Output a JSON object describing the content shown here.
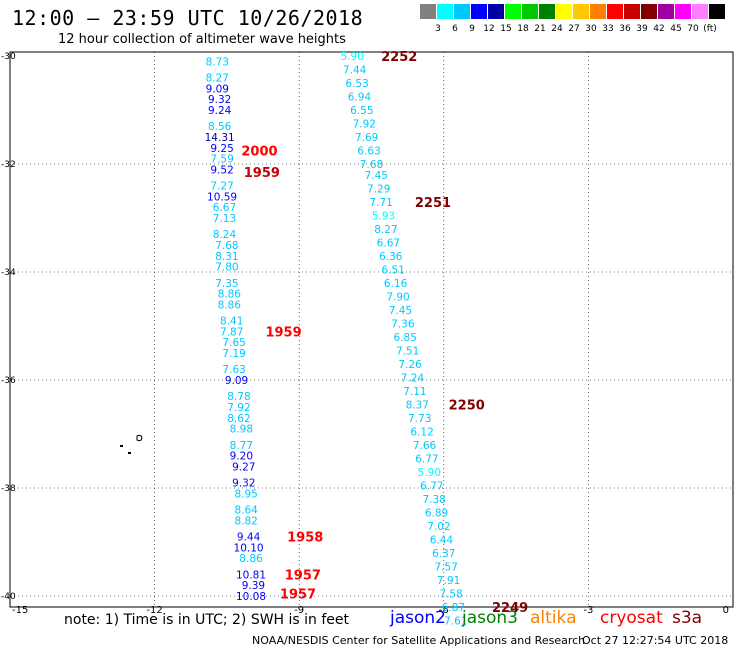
{
  "header": {
    "title": "12:00 — 23:59 UTC 10/26/2018",
    "subtitle": "12 hour collection of altimeter wave heights"
  },
  "scale": {
    "colors": [
      "#808080",
      "#00ffff",
      "#00c8ff",
      "#0000ff",
      "#0000a0",
      "#00ff00",
      "#00c800",
      "#008000",
      "#ffff00",
      "#ffc800",
      "#ff8000",
      "#ff0000",
      "#c80000",
      "#800000",
      "#a000a0",
      "#ff00ff",
      "#ff80ff",
      "#000000"
    ],
    "labels": [
      "3",
      "6",
      "9",
      "12",
      "15",
      "18",
      "21",
      "24",
      "27",
      "30",
      "33",
      "36",
      "39",
      "42",
      "45",
      "70",
      "(ft)"
    ]
  },
  "axes": {
    "x_ticks": [
      "-15",
      "-12",
      "-9",
      "-6",
      "-3",
      "0"
    ],
    "y_ticks": [
      "-30",
      "-32",
      "-34",
      "-36",
      "-38",
      "-40"
    ]
  },
  "tracks": [
    {
      "points": [
        {
          "lat": -30.1,
          "lon": -10.7,
          "v": "8.73"
        },
        {
          "lat": -30.4,
          "lon": -10.7,
          "v": "8.27"
        },
        {
          "lat": -30.6,
          "lon": -10.7,
          "v": "9.09"
        },
        {
          "lat": -30.8,
          "lon": -10.65,
          "v": "9.32"
        },
        {
          "lat": -31.0,
          "lon": -10.65,
          "v": "9.24"
        },
        {
          "lat": -31.3,
          "lon": -10.65,
          "v": "8.56"
        },
        {
          "lat": -31.5,
          "lon": -10.65,
          "v": "14.31"
        },
        {
          "lat": -31.7,
          "lon": -10.6,
          "v": "9.25"
        },
        {
          "lat": -31.9,
          "lon": -10.6,
          "v": "7.59"
        },
        {
          "lat": -32.1,
          "lon": -10.6,
          "v": "9.52"
        },
        {
          "lat": -32.4,
          "lon": -10.6,
          "v": "7.27"
        },
        {
          "lat": -32.6,
          "lon": -10.6,
          "v": "10.59"
        },
        {
          "lat": -32.8,
          "lon": -10.55,
          "v": "6.67"
        },
        {
          "lat": -33.0,
          "lon": -10.55,
          "v": "7.13"
        },
        {
          "lat": -33.3,
          "lon": -10.55,
          "v": "8.24"
        },
        {
          "lat": -33.5,
          "lon": -10.5,
          "v": "7.68"
        },
        {
          "lat": -33.7,
          "lon": -10.5,
          "v": "8.31"
        },
        {
          "lat": -33.9,
          "lon": -10.5,
          "v": "7.80"
        },
        {
          "lat": -34.2,
          "lon": -10.5,
          "v": "7.35"
        },
        {
          "lat": -34.4,
          "lon": -10.45,
          "v": "8.86"
        },
        {
          "lat": -34.6,
          "lon": -10.45,
          "v": "8.86"
        },
        {
          "lat": -34.9,
          "lon": -10.4,
          "v": "8.41"
        },
        {
          "lat": -35.1,
          "lon": -10.4,
          "v": "7.87"
        },
        {
          "lat": -35.3,
          "lon": -10.35,
          "v": "7.65"
        },
        {
          "lat": -35.5,
          "lon": -10.35,
          "v": "7.19"
        },
        {
          "lat": -35.8,
          "lon": -10.35,
          "v": "7.63"
        },
        {
          "lat": -36.0,
          "lon": -10.3,
          "v": "9.09"
        },
        {
          "lat": -36.3,
          "lon": -10.25,
          "v": "8.78"
        },
        {
          "lat": -36.5,
          "lon": -10.25,
          "v": "7.92"
        },
        {
          "lat": -36.7,
          "lon": -10.25,
          "v": "8.62"
        },
        {
          "lat": -36.9,
          "lon": -10.2,
          "v": "8.98"
        },
        {
          "lat": -37.2,
          "lon": -10.2,
          "v": "8.77"
        },
        {
          "lat": -37.4,
          "lon": -10.2,
          "v": "9.20"
        },
        {
          "lat": -37.6,
          "lon": -10.15,
          "v": "9.27"
        },
        {
          "lat": -37.9,
          "lon": -10.15,
          "v": "9.32"
        },
        {
          "lat": -38.1,
          "lon": -10.1,
          "v": "8.95"
        },
        {
          "lat": -38.4,
          "lon": -10.1,
          "v": "8.64"
        },
        {
          "lat": -38.6,
          "lon": -10.1,
          "v": "8.82"
        },
        {
          "lat": -38.9,
          "lon": -10.05,
          "v": "9.44"
        },
        {
          "lat": -39.1,
          "lon": -10.05,
          "v": "10.10"
        },
        {
          "lat": -39.3,
          "lon": -10.0,
          "v": "8.86"
        },
        {
          "lat": -39.6,
          "lon": -10.0,
          "v": "10.81"
        },
        {
          "lat": -39.8,
          "lon": -9.95,
          "v": "9.39"
        },
        {
          "lat": -40.0,
          "lon": -10.0,
          "v": "10.08"
        }
      ]
    },
    {
      "points": [
        {
          "lat": -30.0,
          "lon": -7.9,
          "v": "5.90"
        },
        {
          "lat": -30.25,
          "lon": -7.85,
          "v": "7.44"
        },
        {
          "lat": -30.5,
          "lon": -7.8,
          "v": "6.53"
        },
        {
          "lat": -30.75,
          "lon": -7.75,
          "v": "6.94"
        },
        {
          "lat": -31.0,
          "lon": -7.7,
          "v": "6.55"
        },
        {
          "lat": -31.25,
          "lon": -7.65,
          "v": "7.92"
        },
        {
          "lat": -31.5,
          "lon": -7.6,
          "v": "7.69"
        },
        {
          "lat": -31.75,
          "lon": -7.55,
          "v": "6.63"
        },
        {
          "lat": -32.0,
          "lon": -7.5,
          "v": "7.68"
        },
        {
          "lat": -32.2,
          "lon": -7.4,
          "v": "7.45"
        },
        {
          "lat": -32.45,
          "lon": -7.35,
          "v": "7.29"
        },
        {
          "lat": -32.7,
          "lon": -7.3,
          "v": "7.71"
        },
        {
          "lat": -32.95,
          "lon": -7.25,
          "v": "5.93"
        },
        {
          "lat": -33.2,
          "lon": -7.2,
          "v": "8.27"
        },
        {
          "lat": -33.45,
          "lon": -7.15,
          "v": "6.67"
        },
        {
          "lat": -33.7,
          "lon": -7.1,
          "v": "6.36"
        },
        {
          "lat": -33.95,
          "lon": -7.05,
          "v": "6.51"
        },
        {
          "lat": -34.2,
          "lon": -7.0,
          "v": "6.16"
        },
        {
          "lat": -34.45,
          "lon": -6.95,
          "v": "7.90"
        },
        {
          "lat": -34.7,
          "lon": -6.9,
          "v": "7.45"
        },
        {
          "lat": -34.95,
          "lon": -6.85,
          "v": "7.36"
        },
        {
          "lat": -35.2,
          "lon": -6.8,
          "v": "6.85"
        },
        {
          "lat": -35.45,
          "lon": -6.75,
          "v": "7.51"
        },
        {
          "lat": -35.7,
          "lon": -6.7,
          "v": "7.26"
        },
        {
          "lat": -35.95,
          "lon": -6.65,
          "v": "7.24"
        },
        {
          "lat": -36.2,
          "lon": -6.6,
          "v": "7.11"
        },
        {
          "lat": -36.45,
          "lon": -6.55,
          "v": "8.37"
        },
        {
          "lat": -36.7,
          "lon": -6.5,
          "v": "7.73"
        },
        {
          "lat": -36.95,
          "lon": -6.45,
          "v": "6.12"
        },
        {
          "lat": -37.2,
          "lon": -6.4,
          "v": "7.66"
        },
        {
          "lat": -37.45,
          "lon": -6.35,
          "v": "6.77"
        },
        {
          "lat": -37.7,
          "lon": -6.3,
          "v": "5.90"
        },
        {
          "lat": -37.95,
          "lon": -6.25,
          "v": "6.77"
        },
        {
          "lat": -38.2,
          "lon": -6.2,
          "v": "7.38"
        },
        {
          "lat": -38.45,
          "lon": -6.15,
          "v": "6.89"
        },
        {
          "lat": -38.7,
          "lon": -6.1,
          "v": "7.02"
        },
        {
          "lat": -38.95,
          "lon": -6.05,
          "v": "6.44"
        },
        {
          "lat": -39.2,
          "lon": -6.0,
          "v": "6.37"
        },
        {
          "lat": -39.45,
          "lon": -5.95,
          "v": "7.57"
        },
        {
          "lat": -39.7,
          "lon": -5.9,
          "v": "7.91"
        },
        {
          "lat": -39.95,
          "lon": -5.85,
          "v": "7.58"
        },
        {
          "lat": -40.2,
          "lon": -5.8,
          "v": "6.87"
        },
        {
          "lat": -40.45,
          "lon": -5.75,
          "v": "7.61"
        }
      ]
    }
  ],
  "time_labels": [
    {
      "text": "2252",
      "lat": -30.0,
      "lon": -7.3,
      "color": "#800000"
    },
    {
      "text": "2000",
      "lat": -31.75,
      "lon": -10.2,
      "color": "#ff0000"
    },
    {
      "text": "1959",
      "lat": -32.15,
      "lon": -10.15,
      "color": "#c80000"
    },
    {
      "text": "2251",
      "lat": -32.7,
      "lon": -6.6,
      "color": "#800000"
    },
    {
      "text": "1959",
      "lat": -35.1,
      "lon": -9.7,
      "color": "#ff0000"
    },
    {
      "text": "2250",
      "lat": -36.45,
      "lon": -5.9,
      "color": "#800000"
    },
    {
      "text": "1958",
      "lat": -38.9,
      "lon": -9.25,
      "color": "#ff0000"
    },
    {
      "text": "1957",
      "lat": -39.6,
      "lon": -9.3,
      "color": "#ff0000"
    },
    {
      "text": "1957",
      "lat": -39.95,
      "lon": -9.4,
      "color": "#ff0000"
    },
    {
      "text": "2249",
      "lat": -40.2,
      "lon": -5.0,
      "color": "#800000"
    }
  ],
  "footer": {
    "note": "note: 1) Time is in UTC; 2) SWH is in feet",
    "satellites": [
      {
        "name": "jason2",
        "color": "#0000ff"
      },
      {
        "name": "jason3",
        "color": "#008000"
      },
      {
        "name": "altika",
        "color": "#ff8000"
      },
      {
        "name": "cryosat",
        "color": "#ff0000"
      },
      {
        "name": "s3a",
        "color": "#800000"
      }
    ],
    "credit": "NOAA/NESDIS Center for Satellite Applications and Research",
    "timestamp": "Oct 27 12:27:54 UTC 2018"
  }
}
